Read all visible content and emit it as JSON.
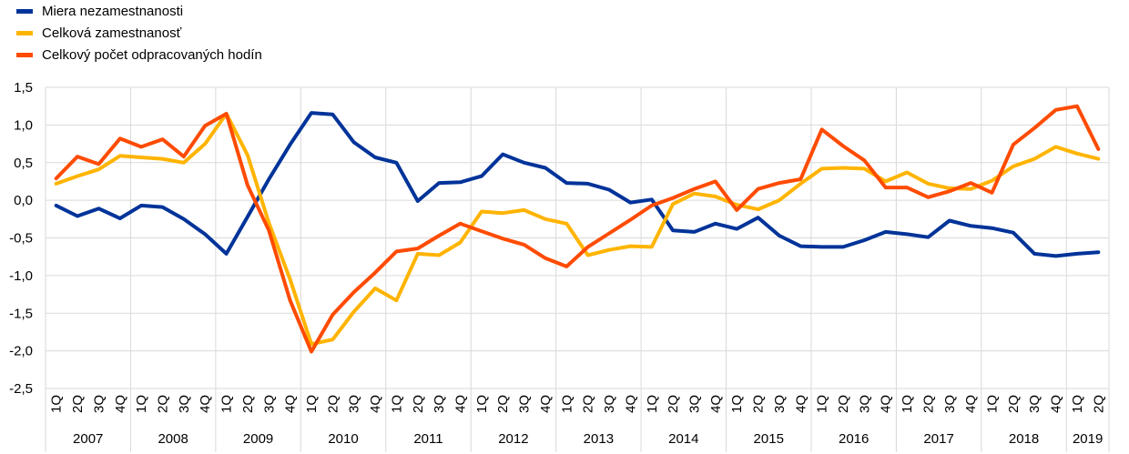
{
  "chart_data": {
    "type": "line",
    "ylim": [
      -2.5,
      1.5
    ],
    "yticks": [
      "1,5",
      "1,0",
      "0,5",
      "0,0",
      "-0,5",
      "-1,0",
      "-1,5",
      "-2,0",
      "-2,5"
    ],
    "ytick_values": [
      1.5,
      1.0,
      0.5,
      0.0,
      -0.5,
      -1.0,
      -1.5,
      -2.0,
      -2.5
    ],
    "grid": true,
    "legend_position": "top-left",
    "quarter_labels": [
      "1Q",
      "2Q",
      "3Q",
      "4Q"
    ],
    "years": [
      {
        "label": "2007",
        "quarters": 4
      },
      {
        "label": "2008",
        "quarters": 4
      },
      {
        "label": "2009",
        "quarters": 4
      },
      {
        "label": "2010",
        "quarters": 4
      },
      {
        "label": "2011",
        "quarters": 4
      },
      {
        "label": "2012",
        "quarters": 4
      },
      {
        "label": "2013",
        "quarters": 4
      },
      {
        "label": "2014",
        "quarters": 4
      },
      {
        "label": "2015",
        "quarters": 4
      },
      {
        "label": "2016",
        "quarters": 4
      },
      {
        "label": "2017",
        "quarters": 4
      },
      {
        "label": "2018",
        "quarters": 4
      },
      {
        "label": "2019",
        "quarters": 2
      }
    ],
    "series": [
      {
        "name": "Miera nezamestnanosti",
        "color": "#003399",
        "values": [
          -0.07,
          -0.21,
          -0.11,
          -0.24,
          -0.07,
          -0.09,
          -0.25,
          -0.45,
          -0.71,
          -0.22,
          0.28,
          0.74,
          1.16,
          1.14,
          0.77,
          0.57,
          0.5,
          -0.01,
          0.23,
          0.24,
          0.32,
          0.61,
          0.5,
          0.43,
          0.23,
          0.22,
          0.14,
          -0.03,
          0.01,
          -0.4,
          -0.42,
          -0.31,
          -0.38,
          -0.23,
          -0.47,
          -0.61,
          -0.62,
          -0.62,
          -0.53,
          -0.42,
          -0.45,
          -0.49,
          -0.27,
          -0.34,
          -0.37,
          -0.43,
          -0.71,
          -0.74,
          -0.71,
          -0.69
        ]
      },
      {
        "name": "Celková zamestnanosť",
        "color": "#FFB400",
        "values": [
          0.22,
          0.32,
          0.41,
          0.59,
          0.57,
          0.55,
          0.5,
          0.75,
          1.15,
          0.6,
          -0.3,
          -1.05,
          -1.91,
          -1.85,
          -1.48,
          -1.17,
          -1.33,
          -0.71,
          -0.73,
          -0.56,
          -0.15,
          -0.17,
          -0.13,
          -0.25,
          -0.31,
          -0.73,
          -0.66,
          -0.61,
          -0.62,
          -0.05,
          0.09,
          0.05,
          -0.06,
          -0.12,
          0.0,
          0.22,
          0.42,
          0.43,
          0.42,
          0.25,
          0.37,
          0.22,
          0.16,
          0.15,
          0.26,
          0.45,
          0.55,
          0.71,
          0.62,
          0.55
        ]
      },
      {
        "name": "Celkový počet odpracovaných hodín",
        "color": "#FF4B00",
        "values": [
          0.29,
          0.58,
          0.48,
          0.82,
          0.71,
          0.81,
          0.58,
          0.99,
          1.15,
          0.2,
          -0.4,
          -1.33,
          -2.01,
          -1.52,
          -1.22,
          -0.96,
          -0.68,
          -0.64,
          -0.47,
          -0.31,
          -0.41,
          -0.51,
          -0.59,
          -0.77,
          -0.88,
          -0.62,
          -0.44,
          -0.26,
          -0.07,
          0.03,
          0.15,
          0.25,
          -0.13,
          0.15,
          0.23,
          0.28,
          0.94,
          0.72,
          0.53,
          0.17,
          0.17,
          0.04,
          0.12,
          0.23,
          0.1,
          0.74,
          0.96,
          1.2,
          1.25,
          0.68
        ]
      }
    ]
  }
}
